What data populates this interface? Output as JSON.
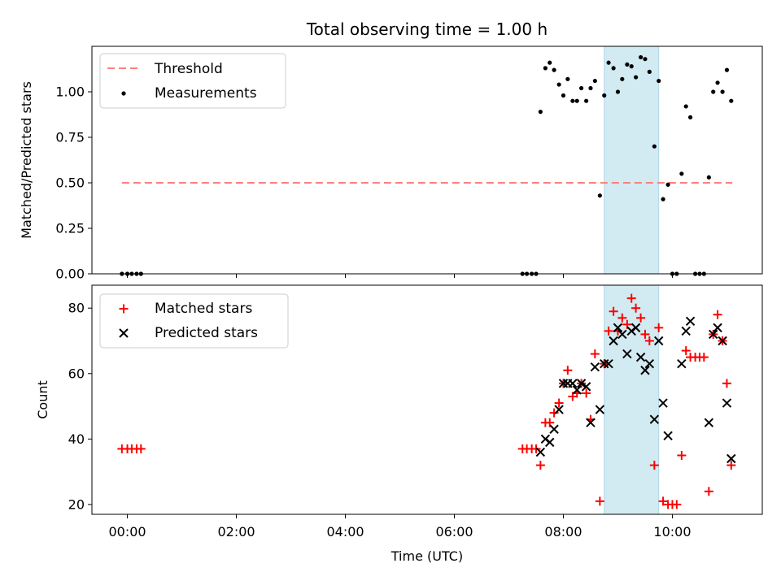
{
  "title": "Total observing time = 1.00 h",
  "colors": {
    "threshold": "#ff7f7f",
    "measurement": "#000000",
    "matched": "#ff0000",
    "predicted": "#000000",
    "highlight": "#add8e6"
  },
  "chart_data": [
    {
      "type": "scatter",
      "ylabel": "Matched/Predicted stars",
      "xlabel": "",
      "xlim_hours": [
        -0.65,
        11.65
      ],
      "ylim": [
        0,
        1.25
      ],
      "yticks": [
        0.0,
        0.25,
        0.5,
        0.75,
        1.0
      ],
      "ytick_labels": [
        "0.00",
        "0.25",
        "0.50",
        "0.75",
        "1.00"
      ],
      "highlight_span_hours": [
        8.75,
        9.75
      ],
      "legend": {
        "position": "upper-left",
        "entries": [
          "Threshold",
          "Measurements"
        ]
      },
      "threshold": {
        "name": "Threshold",
        "y": 0.5,
        "x_range_hours": [
          -0.1,
          11.1
        ],
        "style": "dashed"
      },
      "series": [
        {
          "name": "Measurements",
          "marker": "dot",
          "x": [
            -0.1,
            0.0,
            0.08,
            0.17,
            0.25,
            7.25,
            7.33,
            7.42,
            7.5,
            7.58,
            7.67,
            7.75,
            7.83,
            7.92,
            8.0,
            8.08,
            8.17,
            8.25,
            8.33,
            8.42,
            8.5,
            8.58,
            8.67,
            8.75,
            8.83,
            8.92,
            9.0,
            9.08,
            9.17,
            9.25,
            9.33,
            9.42,
            9.5,
            9.58,
            9.67,
            9.75,
            9.83,
            9.92,
            10.0,
            10.08,
            10.17,
            10.25,
            10.33,
            10.42,
            10.5,
            10.58,
            10.67,
            10.75,
            10.83,
            10.92,
            11.0,
            11.08
          ],
          "y": [
            0.0,
            0.0,
            0.0,
            0.0,
            0.0,
            0.0,
            0.0,
            0.0,
            0.0,
            0.89,
            1.13,
            1.16,
            1.12,
            1.04,
            0.98,
            1.07,
            0.95,
            0.95,
            1.02,
            0.95,
            1.02,
            1.06,
            0.43,
            0.98,
            1.16,
            1.13,
            1.0,
            1.07,
            1.15,
            1.14,
            1.08,
            1.19,
            1.18,
            1.11,
            0.7,
            1.06,
            0.41,
            0.49,
            0.0,
            0.0,
            0.55,
            0.92,
            0.86,
            0.0,
            0.0,
            0.0,
            0.53,
            1.0,
            1.05,
            1.0,
            1.12,
            0.95
          ]
        }
      ]
    },
    {
      "type": "scatter",
      "ylabel": "Count",
      "xlabel": "Time (UTC)",
      "xlim_hours": [
        -0.65,
        11.65
      ],
      "ylim": [
        17,
        87
      ],
      "yticks": [
        20,
        40,
        60,
        80
      ],
      "ytick_labels": [
        "20",
        "40",
        "60",
        "80"
      ],
      "xticks_hours": [
        0,
        2,
        4,
        6,
        8,
        10
      ],
      "xtick_labels": [
        "00:00",
        "02:00",
        "04:00",
        "06:00",
        "08:00",
        "10:00"
      ],
      "highlight_span_hours": [
        8.75,
        9.75
      ],
      "legend": {
        "position": "upper-left",
        "entries": [
          "Matched stars",
          "Predicted stars"
        ]
      },
      "series": [
        {
          "name": "Matched stars",
          "marker": "plus",
          "x": [
            -0.1,
            0.0,
            0.08,
            0.17,
            0.25,
            7.25,
            7.33,
            7.42,
            7.5,
            7.58,
            7.67,
            7.75,
            7.83,
            7.92,
            8.0,
            8.08,
            8.17,
            8.25,
            8.33,
            8.42,
            8.5,
            8.58,
            8.67,
            8.75,
            8.83,
            8.92,
            9.0,
            9.08,
            9.17,
            9.25,
            9.33,
            9.42,
            9.5,
            9.58,
            9.67,
            9.75,
            9.83,
            9.92,
            10.0,
            10.08,
            10.17,
            10.25,
            10.33,
            10.42,
            10.5,
            10.58,
            10.67,
            10.75,
            10.83,
            10.92,
            11.0,
            11.08
          ],
          "y": [
            37,
            37,
            37,
            37,
            37,
            37,
            37,
            37,
            37,
            32,
            45,
            45,
            48,
            51,
            57,
            61,
            53,
            54,
            57,
            54,
            46,
            66,
            21,
            63,
            73,
            79,
            73,
            77,
            75,
            83,
            80,
            77,
            72,
            70,
            32,
            74,
            21,
            20,
            20,
            20,
            35,
            67,
            65,
            65,
            65,
            65,
            24,
            72,
            78,
            70,
            57,
            32
          ]
        },
        {
          "name": "Predicted stars",
          "marker": "x",
          "x": [
            7.58,
            7.67,
            7.75,
            7.83,
            7.92,
            8.0,
            8.08,
            8.17,
            8.25,
            8.33,
            8.42,
            8.5,
            8.58,
            8.67,
            8.75,
            8.83,
            8.92,
            9.0,
            9.08,
            9.17,
            9.25,
            9.33,
            9.42,
            9.5,
            9.58,
            9.67,
            9.75,
            9.83,
            9.92,
            10.17,
            10.25,
            10.33,
            10.67,
            10.75,
            10.83,
            10.92,
            11.0,
            11.08
          ],
          "y": [
            36,
            40,
            39,
            43,
            49,
            57,
            57,
            57,
            55,
            57,
            56,
            45,
            62,
            49,
            63,
            63,
            70,
            74,
            72,
            66,
            73,
            74,
            65,
            61,
            63,
            46,
            70,
            51,
            41,
            63,
            73,
            76,
            45,
            72,
            74,
            70,
            51,
            34
          ]
        }
      ]
    }
  ]
}
